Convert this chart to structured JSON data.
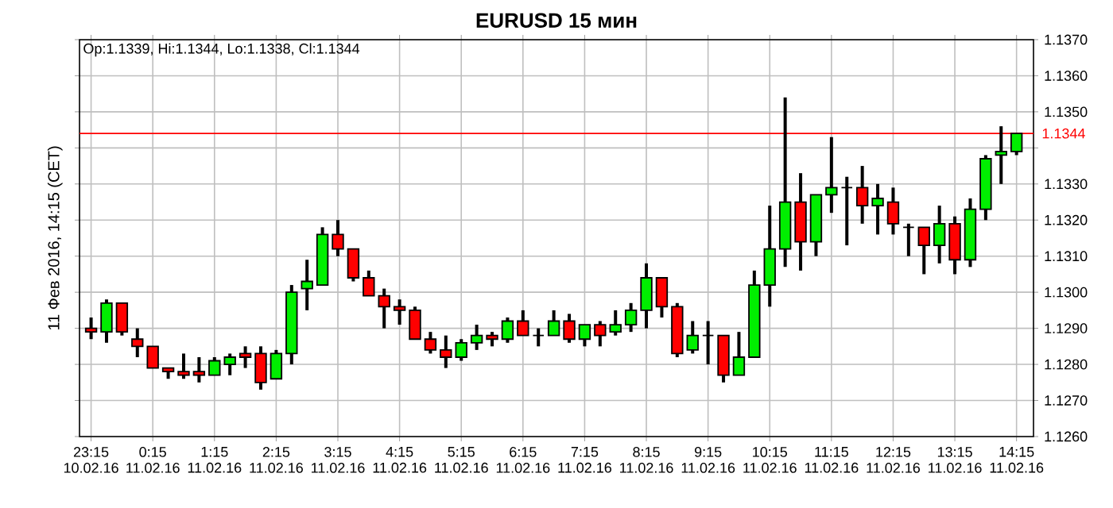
{
  "chart_data": {
    "type": "candlestick",
    "title": "EURUSD 15 мин",
    "ylabel": "11 Фев 2016, 14:15 (CET)",
    "annotations": [
      "Op:1.1339, Hi:1.1344, Lo:1.1338, Cl:1.1344"
    ],
    "categories": [
      "23:15 10.02.16",
      null,
      null,
      null,
      "0:15 11.02.16",
      null,
      null,
      null,
      "1:15 11.02.16",
      null,
      null,
      null,
      "2:15 11.02.16",
      null,
      null,
      null,
      "3:15 11.02.16",
      null,
      null,
      null,
      "4:15 11.02.16",
      null,
      null,
      null,
      "5:15 11.02.16",
      null,
      null,
      null,
      "6:15 11.02.16",
      null,
      null,
      null,
      "7:15 11.02.16",
      null,
      null,
      null,
      "8:15 11.02.16",
      null,
      null,
      null,
      "9:15 11.02.16",
      null,
      null,
      null,
      "10:15 11.02.16",
      null,
      null,
      null,
      "11:15 11.02.16",
      null,
      null,
      null,
      "12:15 11.02.16",
      null,
      null,
      null,
      "13:15 11.02.16",
      null,
      null,
      null,
      "14:15 11.02.16"
    ],
    "ohlc": [
      [
        1.129,
        1.1293,
        1.1287,
        1.1289
      ],
      [
        1.1289,
        1.1298,
        1.1286,
        1.1297
      ],
      [
        1.1297,
        1.1297,
        1.1288,
        1.1289
      ],
      [
        1.1287,
        1.129,
        1.1282,
        1.1285
      ],
      [
        1.1285,
        1.1285,
        1.1279,
        1.1279
      ],
      [
        1.1279,
        1.1279,
        1.1276,
        1.1278
      ],
      [
        1.1278,
        1.1283,
        1.1276,
        1.1277
      ],
      [
        1.1278,
        1.1282,
        1.1275,
        1.1277
      ],
      [
        1.1277,
        1.1282,
        1.1277,
        1.1281
      ],
      [
        1.128,
        1.1283,
        1.1277,
        1.1282
      ],
      [
        1.1283,
        1.1285,
        1.1279,
        1.1282
      ],
      [
        1.1283,
        1.1285,
        1.1273,
        1.1275
      ],
      [
        1.1276,
        1.1284,
        1.1276,
        1.1283
      ],
      [
        1.1283,
        1.1302,
        1.128,
        1.13
      ],
      [
        1.1301,
        1.1309,
        1.1295,
        1.1303
      ],
      [
        1.1302,
        1.1318,
        1.1302,
        1.1316
      ],
      [
        1.1316,
        1.132,
        1.131,
        1.1312
      ],
      [
        1.1312,
        1.1312,
        1.1303,
        1.1304
      ],
      [
        1.1304,
        1.1306,
        1.1299,
        1.1299
      ],
      [
        1.1299,
        1.1301,
        1.129,
        1.1296
      ],
      [
        1.1296,
        1.1298,
        1.1291,
        1.1295
      ],
      [
        1.1295,
        1.1296,
        1.1287,
        1.1287
      ],
      [
        1.1287,
        1.1289,
        1.1283,
        1.1284
      ],
      [
        1.1284,
        1.1288,
        1.1279,
        1.1282
      ],
      [
        1.1282,
        1.1287,
        1.1281,
        1.1286
      ],
      [
        1.1286,
        1.1291,
        1.1284,
        1.1288
      ],
      [
        1.1288,
        1.1289,
        1.1285,
        1.1287
      ],
      [
        1.1287,
        1.1293,
        1.1286,
        1.1292
      ],
      [
        1.1292,
        1.1295,
        1.1288,
        1.1288
      ],
      [
        1.1288,
        1.129,
        1.1285,
        1.1288
      ],
      [
        1.1288,
        1.1295,
        1.1288,
        1.1292
      ],
      [
        1.1292,
        1.1294,
        1.1286,
        1.1287
      ],
      [
        1.1287,
        1.1291,
        1.1285,
        1.1291
      ],
      [
        1.1291,
        1.1292,
        1.1285,
        1.1288
      ],
      [
        1.1289,
        1.1295,
        1.1288,
        1.1291
      ],
      [
        1.1291,
        1.1297,
        1.1289,
        1.1295
      ],
      [
        1.1295,
        1.1308,
        1.129,
        1.1304
      ],
      [
        1.1304,
        1.1304,
        1.1293,
        1.1296
      ],
      [
        1.1296,
        1.1297,
        1.1282,
        1.1283
      ],
      [
        1.1284,
        1.1292,
        1.1283,
        1.1288
      ],
      [
        1.1288,
        1.1292,
        1.128,
        1.1288
      ],
      [
        1.1288,
        1.1288,
        1.1275,
        1.1277
      ],
      [
        1.1277,
        1.1289,
        1.1277,
        1.1282
      ],
      [
        1.1282,
        1.1306,
        1.1282,
        1.1302
      ],
      [
        1.1302,
        1.1324,
        1.1296,
        1.1312
      ],
      [
        1.1312,
        1.1354,
        1.1307,
        1.1325
      ],
      [
        1.1325,
        1.1333,
        1.1306,
        1.1314
      ],
      [
        1.1314,
        1.1327,
        1.131,
        1.1327
      ],
      [
        1.1327,
        1.1343,
        1.1322,
        1.1329
      ],
      [
        1.1329,
        1.1332,
        1.1313,
        1.1329
      ],
      [
        1.1329,
        1.1335,
        1.1319,
        1.1324
      ],
      [
        1.1324,
        1.133,
        1.1316,
        1.1326
      ],
      [
        1.1325,
        1.1329,
        1.1316,
        1.1319
      ],
      [
        1.1318,
        1.1319,
        1.131,
        1.1318
      ],
      [
        1.1318,
        1.1318,
        1.1305,
        1.1313
      ],
      [
        1.1313,
        1.1324,
        1.1308,
        1.1319
      ],
      [
        1.1319,
        1.1321,
        1.1305,
        1.1309
      ],
      [
        1.1309,
        1.1326,
        1.1307,
        1.1323
      ],
      [
        1.1323,
        1.1338,
        1.132,
        1.1337
      ],
      [
        1.1338,
        1.1346,
        1.133,
        1.1339
      ],
      [
        1.1339,
        1.1344,
        1.1338,
        1.1344
      ]
    ],
    "colors": [
      "#ff0000",
      "#00ee00",
      "#ff0000",
      "#ff0000",
      "#ff0000",
      "#ff0000",
      "#ff0000",
      "#ff0000",
      "#00ee00",
      "#00ee00",
      "#ff0000",
      "#ff0000",
      "#00ee00",
      "#00ee00",
      "#00ee00",
      "#00ee00",
      "#ff0000",
      "#ff0000",
      "#ff0000",
      "#ff0000",
      "#ff0000",
      "#ff0000",
      "#ff0000",
      "#ff0000",
      "#00ee00",
      "#00ee00",
      "#ff0000",
      "#00ee00",
      "#ff0000",
      "#000000",
      "#00ee00",
      "#ff0000",
      "#00ee00",
      "#ff0000",
      "#00ee00",
      "#00ee00",
      "#00ee00",
      "#ff0000",
      "#ff0000",
      "#00ee00",
      "#000000",
      "#ff0000",
      "#00ee00",
      "#00ee00",
      "#00ee00",
      "#00ee00",
      "#ff0000",
      "#00ee00",
      "#00ee00",
      "#000000",
      "#ff0000",
      "#00ee00",
      "#ff0000",
      "#000000",
      "#ff0000",
      "#00ee00",
      "#ff0000",
      "#00ee00",
      "#00ee00",
      "#00ee00",
      "#00ee00"
    ],
    "ylim": [
      1.126,
      1.137
    ],
    "yticks": [
      {
        "value": 1.126,
        "label": "1.1260"
      },
      {
        "value": 1.127,
        "label": "1.1270"
      },
      {
        "value": 1.128,
        "label": "1.1280"
      },
      {
        "value": 1.129,
        "label": "1.1290"
      },
      {
        "value": 1.13,
        "label": "1.1300"
      },
      {
        "value": 1.131,
        "label": "1.1310"
      },
      {
        "value": 1.132,
        "label": "1.1320"
      },
      {
        "value": 1.133,
        "label": "1.1330"
      },
      {
        "value": 1.134,
        "label": null
      },
      {
        "value": 1.135,
        "label": "1.1350"
      },
      {
        "value": 1.136,
        "label": "1.1360"
      },
      {
        "value": 1.137,
        "label": "1.1370"
      }
    ],
    "ref_lines": [
      {
        "axis": "y",
        "value": 1.1344,
        "label": "1.1344",
        "color": "#ff0000"
      }
    ],
    "grid": true
  }
}
